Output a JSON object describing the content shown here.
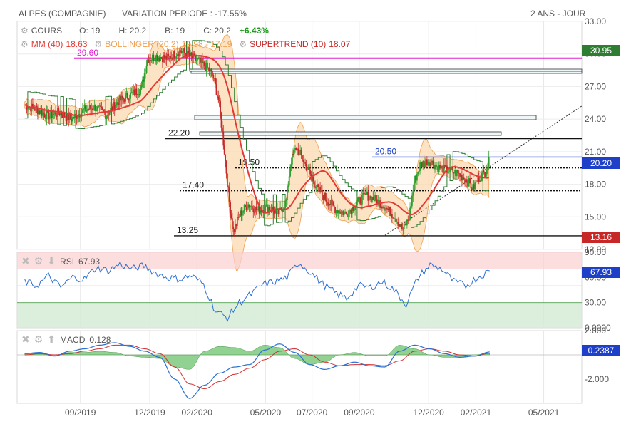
{
  "header": {
    "instrument": "ALPES (COMPAGNIE)",
    "variation": "VARIATION PERIODE : -17.55%",
    "period": "2 ANS - JOUR"
  },
  "legend": {
    "cours_label": "COURS",
    "open": "O: 19",
    "high": "H: 20.2",
    "low": "B: 19",
    "close": "C: 20.2",
    "change": "+6.43%",
    "mm": "MM (40)",
    "mm_value": "18.63",
    "bollinger": "BOLLINGER (20,2)",
    "bollinger_values": "19.98 - 17.19",
    "supertrend": "SUPERTREND (10)",
    "supertrend_value": "18.07"
  },
  "price_tags": {
    "supertrend_tag": "30.95",
    "last_tag": "20.20",
    "low_tag": "13.16"
  },
  "rsi": {
    "label": "RSI",
    "value": "67.93",
    "tag": "67.93"
  },
  "macd": {
    "label": "MACD",
    "value": "0.128",
    "tag": "0.2387"
  },
  "colors": {
    "up": "#2e9e2e",
    "down": "#c62828",
    "mm": "#e53935",
    "bollinger": "#f0a050",
    "bollinger_fill": "#fbd9b0",
    "supertrend": "#2e7d32",
    "magenta": "#e020d0",
    "blue": "#1e40c8",
    "rsi": "#2a6fd6",
    "macd_line": "#2a6fd6",
    "signal_line": "#d03030",
    "histogram": "#6cc26c"
  },
  "chart_data": [
    {
      "type": "candlestick",
      "title": "ALPES (COMPAGNIE)",
      "x_ticks": [
        "09/2019",
        "12/2019",
        "02/2020",
        "05/2020",
        "07/2020",
        "09/2020",
        "12/2020",
        "02/2021",
        "05/2021"
      ],
      "y_ticks": [
        "33.00",
        "30.00",
        "27.00",
        "24.00",
        "21.00",
        "18.00",
        "15.00",
        "12.00"
      ],
      "ylim": [
        12,
        33
      ],
      "series_close": [
        [
          "2019-06-20",
          25.3
        ],
        [
          "2019-07-05",
          24.9
        ],
        [
          "2019-07-20",
          24.3
        ],
        [
          "2019-08-05",
          24.6
        ],
        [
          "2019-08-20",
          24.0
        ],
        [
          "2019-09-05",
          24.8
        ],
        [
          "2019-09-20",
          25.1
        ],
        [
          "2019-10-05",
          24.4
        ],
        [
          "2019-10-20",
          25.6
        ],
        [
          "2019-11-05",
          26.2
        ],
        [
          "2019-11-20",
          26.8
        ],
        [
          "2019-11-28",
          29.5
        ],
        [
          "2019-12-10",
          29.8
        ],
        [
          "2019-12-25",
          29.6
        ],
        [
          "2020-01-10",
          30.3
        ],
        [
          "2020-01-25",
          29.7
        ],
        [
          "2020-02-05",
          29.2
        ],
        [
          "2020-02-15",
          28.7
        ],
        [
          "2020-02-22",
          28.0
        ],
        [
          "2020-03-01",
          25.5
        ],
        [
          "2020-03-08",
          21.0
        ],
        [
          "2020-03-15",
          16.0
        ],
        [
          "2020-03-20",
          13.6
        ],
        [
          "2020-03-28",
          15.2
        ],
        [
          "2020-04-08",
          16.2
        ],
        [
          "2020-04-20",
          15.6
        ],
        [
          "2020-05-05",
          15.9
        ],
        [
          "2020-05-18",
          15.3
        ],
        [
          "2020-05-28",
          16.4
        ],
        [
          "2020-06-03",
          20.0
        ],
        [
          "2020-06-10",
          21.4
        ],
        [
          "2020-06-18",
          20.4
        ],
        [
          "2020-06-28",
          19.0
        ],
        [
          "2020-07-08",
          17.6
        ],
        [
          "2020-07-20",
          16.6
        ],
        [
          "2020-08-01",
          15.7
        ],
        [
          "2020-08-15",
          15.3
        ],
        [
          "2020-08-28",
          16.2
        ],
        [
          "2020-09-10",
          17.0
        ],
        [
          "2020-09-22",
          16.6
        ],
        [
          "2020-10-05",
          15.9
        ],
        [
          "2020-10-18",
          15.0
        ],
        [
          "2020-10-28",
          13.8
        ],
        [
          "2020-11-05",
          14.8
        ],
        [
          "2020-11-12",
          18.2
        ],
        [
          "2020-11-20",
          19.8
        ],
        [
          "2020-12-01",
          20.2
        ],
        [
          "2020-12-12",
          19.6
        ],
        [
          "2020-12-25",
          19.3
        ],
        [
          "2021-01-08",
          19.0
        ],
        [
          "2021-01-20",
          18.4
        ],
        [
          "2021-01-28",
          17.6
        ],
        [
          "2021-02-05",
          18.6
        ],
        [
          "2021-02-12",
          19.0
        ],
        [
          "2021-02-19",
          20.2
        ]
      ],
      "levels": [
        {
          "label": "29.60",
          "value": 29.6,
          "style": "magenta"
        },
        {
          "label": "22.20",
          "value": 22.2,
          "style": "solid"
        },
        {
          "label": "20.50",
          "value": 20.5,
          "style": "blue"
        },
        {
          "label": "19.50",
          "value": 19.5,
          "style": "dotted"
        },
        {
          "label": "17.40",
          "value": 17.4,
          "style": "dotted"
        },
        {
          "label": "13.25",
          "value": 13.25,
          "style": "solid"
        }
      ]
    },
    {
      "type": "line",
      "title": "RSI",
      "y_ticks": [
        "90.00",
        "60.00",
        "30.00",
        "0.0000"
      ],
      "ylim": [
        0,
        90
      ],
      "values": [
        55,
        50,
        62,
        48,
        60,
        58,
        72,
        68,
        76,
        70,
        74,
        65,
        60,
        58,
        62,
        52,
        20,
        12,
        30,
        40,
        52,
        55,
        60,
        78,
        66,
        52,
        42,
        35,
        50,
        48,
        55,
        45,
        28,
        60,
        75,
        70,
        55,
        50,
        60,
        67.93
      ]
    },
    {
      "type": "line",
      "title": "MACD",
      "y_ticks": [
        "2.000",
        "-2.000"
      ],
      "ylim": [
        -4,
        2
      ],
      "macd": [
        0.1,
        0.2,
        -0.1,
        0.3,
        0.5,
        0.8,
        1.0,
        0.7,
        0.3,
        -0.2,
        -2.0,
        -3.6,
        -2.5,
        -1.5,
        -1.0,
        -0.8,
        0.4,
        0.9,
        0.2,
        -0.8,
        -1.2,
        -0.9,
        -0.6,
        -0.9,
        -1.0,
        0.3,
        0.8,
        0.5,
        0.1,
        -0.2,
        -0.1,
        0.2387
      ],
      "signal": [
        0.0,
        0.1,
        0.0,
        0.1,
        0.3,
        0.5,
        0.8,
        0.8,
        0.5,
        0.1,
        -1.0,
        -2.4,
        -2.8,
        -2.2,
        -1.6,
        -1.1,
        -0.4,
        0.3,
        0.5,
        0.0,
        -0.6,
        -0.9,
        -0.8,
        -0.8,
        -0.9,
        -0.5,
        0.3,
        0.5,
        0.3,
        0.0,
        -0.1,
        0.128
      ]
    }
  ]
}
